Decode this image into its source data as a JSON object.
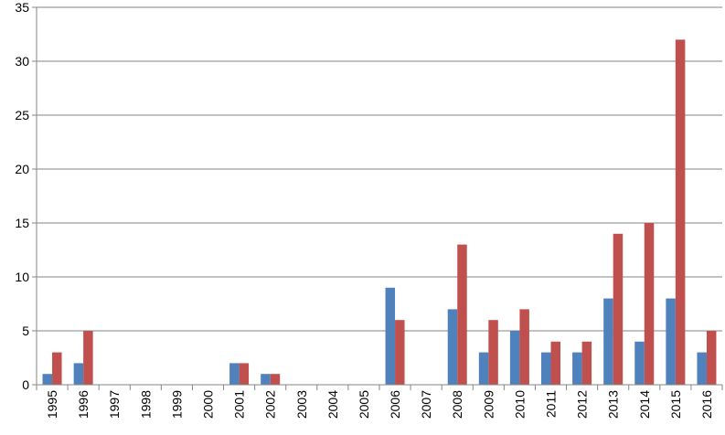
{
  "chart_data": {
    "type": "bar",
    "categories": [
      "1995",
      "1996",
      "1997",
      "1998",
      "1999",
      "2000",
      "2001",
      "2002",
      "2003",
      "2004",
      "2005",
      "2006",
      "2007",
      "2008",
      "2009",
      "2010",
      "2011",
      "2012",
      "2013",
      "2014",
      "2015",
      "2016"
    ],
    "series": [
      {
        "color": "#4f81bd",
        "values": [
          1,
          2,
          0,
          0,
          0,
          0,
          2,
          1,
          0,
          0,
          0,
          9,
          0,
          7,
          3,
          5,
          3,
          3,
          8,
          4,
          8,
          3
        ]
      },
      {
        "color": "#c0504d",
        "values": [
          3,
          5,
          0,
          0,
          0,
          0,
          2,
          1,
          0,
          0,
          0,
          6,
          0,
          13,
          6,
          7,
          4,
          4,
          14,
          15,
          32,
          5
        ]
      }
    ],
    "ylim": [
      0,
      35
    ],
    "yticks": [
      0,
      5,
      10,
      15,
      20,
      25,
      30,
      35
    ],
    "title": "",
    "xlabel": "",
    "ylabel": "",
    "grid": true,
    "legend": "none",
    "x_tick_rotation": "vertical"
  }
}
